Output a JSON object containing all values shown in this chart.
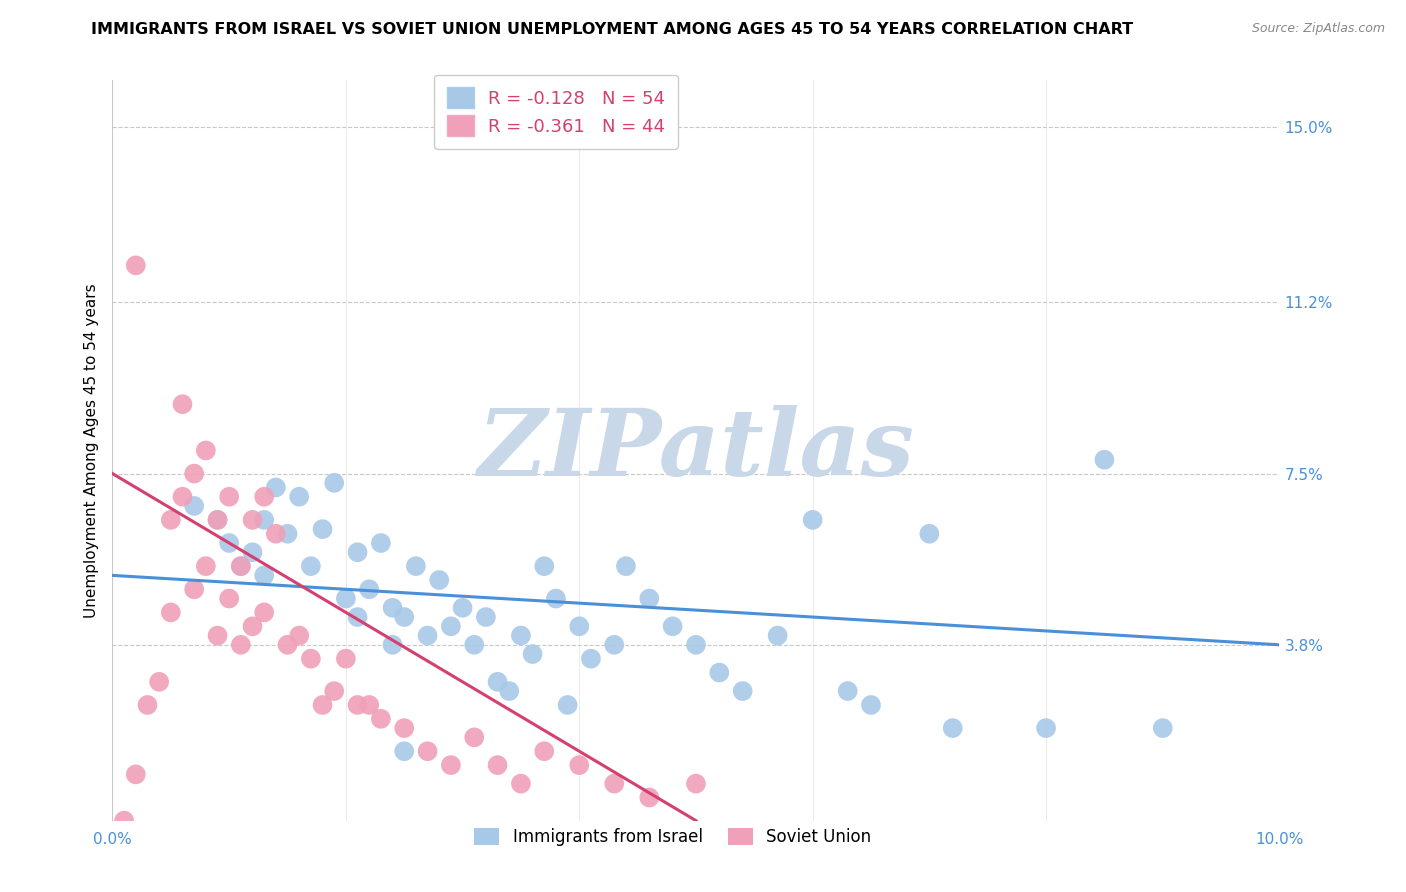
{
  "title": "IMMIGRANTS FROM ISRAEL VS SOVIET UNION UNEMPLOYMENT AMONG AGES 45 TO 54 YEARS CORRELATION CHART",
  "source": "Source: ZipAtlas.com",
  "ylabel": "Unemployment Among Ages 45 to 54 years",
  "x_tick_labels": [
    "0.0%",
    "10.0%"
  ],
  "y_tick_labels_right": [
    "15.0%",
    "11.2%",
    "7.5%",
    "3.8%"
  ],
  "y_tick_values_right": [
    0.15,
    0.112,
    0.075,
    0.038
  ],
  "xlim": [
    0.0,
    0.1
  ],
  "ylim": [
    0.0,
    0.16
  ],
  "legend_bottom_labels": [
    "Immigrants from Israel",
    "Soviet Union"
  ],
  "legend_top_israel_R": "R = -0.128",
  "legend_top_israel_N": "N = 54",
  "legend_top_soviet_R": "R = -0.361",
  "legend_top_soviet_N": "N = 44",
  "israel_color": "#a8c8e8",
  "soviet_color": "#f0a0b8",
  "israel_line_color": "#4a90d9",
  "soviet_line_color": "#d44070",
  "background_color": "#ffffff",
  "grid_color": "#c8c8c8",
  "watermark_color": "#c8d8e8",
  "title_fontsize": 11.5,
  "axis_label_fontsize": 11,
  "tick_label_fontsize": 11,
  "israel_scatter_x": [
    0.007,
    0.009,
    0.01,
    0.011,
    0.012,
    0.013,
    0.013,
    0.014,
    0.015,
    0.016,
    0.017,
    0.018,
    0.019,
    0.02,
    0.021,
    0.021,
    0.022,
    0.023,
    0.024,
    0.024,
    0.025,
    0.026,
    0.027,
    0.028,
    0.029,
    0.03,
    0.031,
    0.032,
    0.033,
    0.034,
    0.035,
    0.036,
    0.037,
    0.038,
    0.039,
    0.04,
    0.041,
    0.043,
    0.044,
    0.046,
    0.048,
    0.05,
    0.052,
    0.054,
    0.057,
    0.06,
    0.063,
    0.065,
    0.07,
    0.072,
    0.08,
    0.085,
    0.09,
    0.025
  ],
  "israel_scatter_y": [
    0.068,
    0.065,
    0.06,
    0.055,
    0.058,
    0.065,
    0.053,
    0.072,
    0.062,
    0.07,
    0.055,
    0.063,
    0.073,
    0.048,
    0.044,
    0.058,
    0.05,
    0.06,
    0.046,
    0.038,
    0.044,
    0.055,
    0.04,
    0.052,
    0.042,
    0.046,
    0.038,
    0.044,
    0.03,
    0.028,
    0.04,
    0.036,
    0.055,
    0.048,
    0.025,
    0.042,
    0.035,
    0.038,
    0.055,
    0.048,
    0.042,
    0.038,
    0.032,
    0.028,
    0.04,
    0.065,
    0.028,
    0.025,
    0.062,
    0.02,
    0.02,
    0.078,
    0.02,
    0.015
  ],
  "israel_line_x": [
    0.0,
    0.1
  ],
  "israel_line_y": [
    0.053,
    0.038
  ],
  "soviet_scatter_x": [
    0.001,
    0.002,
    0.003,
    0.004,
    0.005,
    0.005,
    0.006,
    0.006,
    0.007,
    0.007,
    0.008,
    0.008,
    0.009,
    0.009,
    0.01,
    0.01,
    0.011,
    0.011,
    0.012,
    0.012,
    0.013,
    0.013,
    0.014,
    0.015,
    0.016,
    0.017,
    0.018,
    0.019,
    0.02,
    0.021,
    0.022,
    0.023,
    0.025,
    0.027,
    0.029,
    0.031,
    0.033,
    0.035,
    0.037,
    0.04,
    0.043,
    0.046,
    0.05,
    0.002
  ],
  "soviet_scatter_y": [
    0.0,
    0.01,
    0.025,
    0.03,
    0.065,
    0.045,
    0.07,
    0.09,
    0.075,
    0.05,
    0.08,
    0.055,
    0.065,
    0.04,
    0.07,
    0.048,
    0.055,
    0.038,
    0.065,
    0.042,
    0.07,
    0.045,
    0.062,
    0.038,
    0.04,
    0.035,
    0.025,
    0.028,
    0.035,
    0.025,
    0.025,
    0.022,
    0.02,
    0.015,
    0.012,
    0.018,
    0.012,
    0.008,
    0.015,
    0.012,
    0.008,
    0.005,
    0.008,
    0.12
  ],
  "soviet_line_x": [
    0.0,
    0.05
  ],
  "soviet_line_y": [
    0.075,
    0.0
  ]
}
